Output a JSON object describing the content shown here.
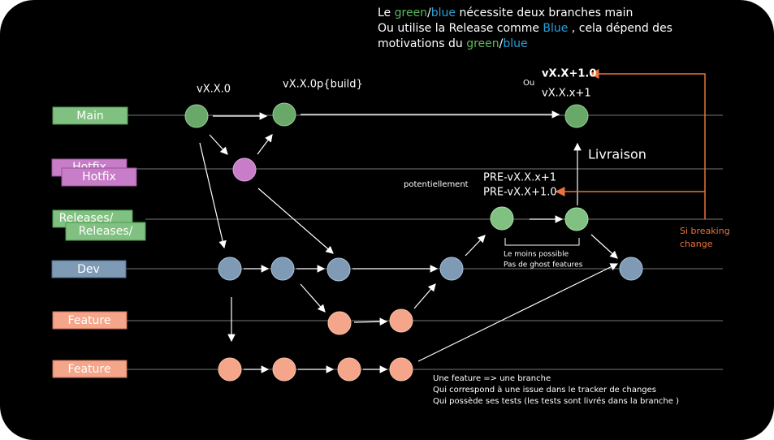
{
  "note": {
    "line1": [
      "Le ",
      "green",
      "/",
      "blue",
      " nécessite deux branches main"
    ],
    "line2": [
      "Ou utilise la Release comme ",
      "Blue",
      " , cela dépend des"
    ],
    "line3": [
      "motivations du ",
      "green",
      "/",
      "blue"
    ]
  },
  "branches": [
    "Main",
    "Hotfix",
    "Hotfix",
    "Releases/",
    "Releases/",
    "Dev",
    "Feature",
    "Feature"
  ],
  "labels": {
    "v_x_x_0": "vX.X.0",
    "v_build": "vX.X.0p{build}",
    "ou": "Ou",
    "v_major": "vX.X+1.0",
    "v_minor": "vX.X.x+1",
    "livraison": "Livraison",
    "potentiellement": "potentiellement",
    "pre_minor": "PRE-vX.X.x+1",
    "pre_major": "PRE-vX.X+1.0",
    "moins": "Le moins possible",
    "ghost": "Pas de ghost features",
    "breaking": [
      "Si breaking",
      "change"
    ]
  },
  "feature_notes": [
    "Une feature => une branche",
    "Qui correspond à une issue dans le tracker de changes",
    "Qui possède ses tests (les tests sont livrés dans la branche )"
  ]
}
